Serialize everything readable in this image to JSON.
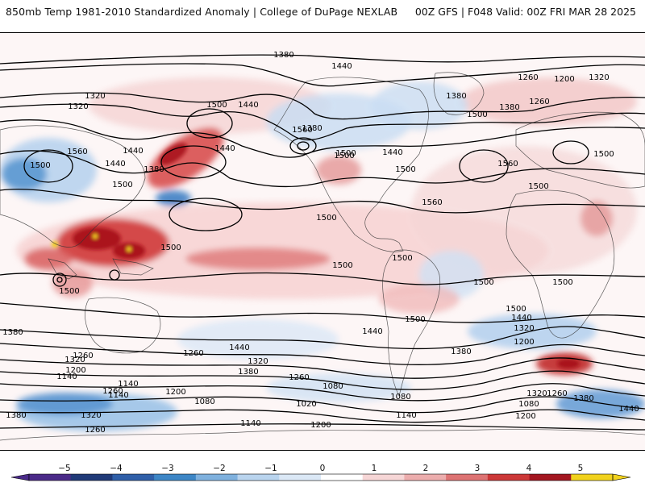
{
  "header": {
    "title_left": "850mb Temp 1981-2010 Standardized Anomaly | College of DuPage NEXLAB",
    "title_right": "00Z GFS | F048 Valid: 00Z FRI MAR 28 2025"
  },
  "map": {
    "contour_labels": [
      "1380",
      "1440",
      "1320",
      "1260",
      "1200",
      "1380",
      "1320",
      "1500",
      "1560",
      "1440",
      "1380",
      "1500",
      "1560",
      "1500",
      "1440",
      "1500",
      "1440",
      "1380",
      "1440",
      "1500",
      "1560",
      "1500",
      "1320",
      "1380",
      "1260",
      "1500",
      "1440",
      "1500",
      "1560",
      "1500",
      "1500",
      "1500",
      "1500",
      "1500",
      "1500",
      "1500",
      "1500",
      "1500",
      "1500",
      "1440",
      "1380",
      "1440",
      "1320",
      "1200",
      "1380",
      "1260",
      "1320",
      "1200",
      "1140",
      "1260",
      "1440",
      "1380",
      "1320",
      "1260",
      "1200",
      "1260",
      "1140",
      "1080",
      "1200",
      "1140",
      "1080",
      "1260",
      "1320",
      "1380",
      "1440",
      "1080",
      "1020",
      "1140",
      "1080",
      "1200",
      "1140",
      "1320",
      "1380",
      "1260"
    ],
    "shading_colors": {
      "neg5": "#5a2a8a",
      "neg4": "#1f3d7a",
      "neg3": "#3f86c8",
      "neg2": "#8fbde6",
      "neg1": "#cfe2f4",
      "zero": "#ffffff",
      "pos1": "#f6cfcf",
      "pos2": "#e79a9a",
      "pos3": "#d64545",
      "pos4": "#a80f18",
      "pos5": "#f2d21b"
    }
  },
  "colorbar": {
    "ticks": [
      "−5",
      "−4",
      "−3",
      "−2",
      "−1",
      "0",
      "1",
      "2",
      "3",
      "4",
      "5"
    ],
    "colors": [
      "#4a2a88",
      "#203a78",
      "#2f5fa8",
      "#3d86c6",
      "#7fb1de",
      "#b9d4ee",
      "#dbe8f6",
      "#ffffff",
      "#f6d6d6",
      "#ecadad",
      "#dd7373",
      "#cc3838",
      "#a31620",
      "#f1d21d"
    ]
  }
}
